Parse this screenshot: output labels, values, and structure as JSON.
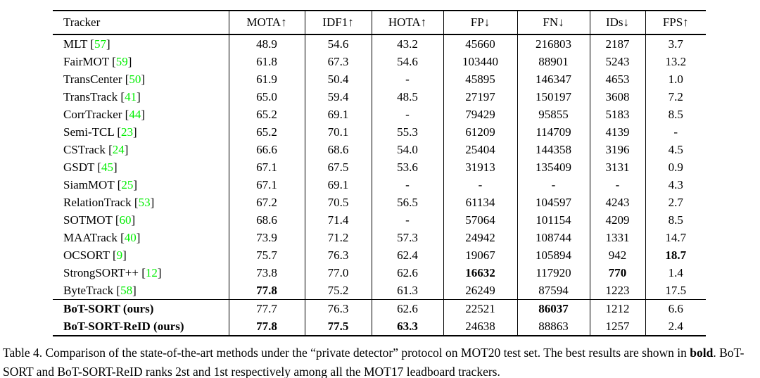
{
  "accent_colors": {
    "citation_green": "#00EE00",
    "text_black": "#000000",
    "background": "#FFFFFF"
  },
  "table": {
    "columns": [
      {
        "key": "tracker",
        "label": "Tracker",
        "arrow": ""
      },
      {
        "key": "mota",
        "label": "MOTA",
        "arrow": "↑"
      },
      {
        "key": "idf1",
        "label": "IDF1",
        "arrow": "↑"
      },
      {
        "key": "hota",
        "label": "HOTA",
        "arrow": "↑"
      },
      {
        "key": "fp",
        "label": "FP",
        "arrow": "↓"
      },
      {
        "key": "fn",
        "label": "FN",
        "arrow": "↓"
      },
      {
        "key": "ids",
        "label": "IDs",
        "arrow": "↓"
      },
      {
        "key": "fps",
        "label": "FPS",
        "arrow": "↑"
      }
    ],
    "rows": [
      {
        "name": "MLT",
        "ref": "57",
        "ours": false,
        "values": [
          "48.9",
          "54.6",
          "43.2",
          "45660",
          "216803",
          "2187",
          "3.7"
        ],
        "bold_cols": []
      },
      {
        "name": "FairMOT",
        "ref": "59",
        "ours": false,
        "values": [
          "61.8",
          "67.3",
          "54.6",
          "103440",
          "88901",
          "5243",
          "13.2"
        ],
        "bold_cols": []
      },
      {
        "name": "TransCenter",
        "ref": "50",
        "ours": false,
        "values": [
          "61.9",
          "50.4",
          "-",
          "45895",
          "146347",
          "4653",
          "1.0"
        ],
        "bold_cols": []
      },
      {
        "name": "TransTrack",
        "ref": "41",
        "ours": false,
        "values": [
          "65.0",
          "59.4",
          "48.5",
          "27197",
          "150197",
          "3608",
          "7.2"
        ],
        "bold_cols": []
      },
      {
        "name": "CorrTracker",
        "ref": "44",
        "ours": false,
        "values": [
          "65.2",
          "69.1",
          "-",
          "79429",
          "95855",
          "5183",
          "8.5"
        ],
        "bold_cols": []
      },
      {
        "name": "Semi-TCL",
        "ref": "23",
        "ours": false,
        "values": [
          "65.2",
          "70.1",
          "55.3",
          "61209",
          "114709",
          "4139",
          "-"
        ],
        "bold_cols": []
      },
      {
        "name": "CSTrack",
        "ref": "24",
        "ours": false,
        "values": [
          "66.6",
          "68.6",
          "54.0",
          "25404",
          "144358",
          "3196",
          "4.5"
        ],
        "bold_cols": []
      },
      {
        "name": "GSDT",
        "ref": "45",
        "ours": false,
        "values": [
          "67.1",
          "67.5",
          "53.6",
          "31913",
          "135409",
          "3131",
          "0.9"
        ],
        "bold_cols": []
      },
      {
        "name": "SiamMOT",
        "ref": "25",
        "ours": false,
        "values": [
          "67.1",
          "69.1",
          "-",
          "-",
          "-",
          "-",
          "4.3"
        ],
        "bold_cols": []
      },
      {
        "name": "RelationTrack",
        "ref": "53",
        "ours": false,
        "values": [
          "67.2",
          "70.5",
          "56.5",
          "61134",
          "104597",
          "4243",
          "2.7"
        ],
        "bold_cols": []
      },
      {
        "name": "SOTMOT",
        "ref": "60",
        "ours": false,
        "values": [
          "68.6",
          "71.4",
          "-",
          "57064",
          "101154",
          "4209",
          "8.5"
        ],
        "bold_cols": []
      },
      {
        "name": "MAATrack",
        "ref": "40",
        "ours": false,
        "values": [
          "73.9",
          "71.2",
          "57.3",
          "24942",
          "108744",
          "1331",
          "14.7"
        ],
        "bold_cols": []
      },
      {
        "name": "OCSORT",
        "ref": "9",
        "ours": false,
        "values": [
          "75.7",
          "76.3",
          "62.4",
          "19067",
          "105894",
          "942",
          "18.7"
        ],
        "bold_cols": [
          6
        ]
      },
      {
        "name": "StrongSORT++",
        "ref": "12",
        "ours": false,
        "values": [
          "73.8",
          "77.0",
          "62.6",
          "16632",
          "117920",
          "770",
          "1.4"
        ],
        "bold_cols": [
          3,
          5
        ]
      },
      {
        "name": "ByteTrack",
        "ref": "58",
        "ours": false,
        "values": [
          "77.8",
          "75.2",
          "61.3",
          "26249",
          "87594",
          "1223",
          "17.5"
        ],
        "bold_cols": [
          0
        ]
      },
      {
        "name": "BoT-SORT (ours)",
        "ref": "",
        "ours": true,
        "values": [
          "77.7",
          "76.3",
          "62.6",
          "22521",
          "86037",
          "1212",
          "6.6"
        ],
        "bold_cols": [
          4
        ]
      },
      {
        "name": "BoT-SORT-ReID (ours)",
        "ref": "",
        "ours": true,
        "values": [
          "77.8",
          "77.5",
          "63.3",
          "24638",
          "88863",
          "1257",
          "2.4"
        ],
        "bold_cols": [
          0,
          1,
          2
        ]
      }
    ]
  },
  "caption": {
    "segments": [
      {
        "text": "Table 4. Comparison of the state-of-the-art methods under the “private detector” protocol on MOT20 test set. The best results are shown in ",
        "bold": false
      },
      {
        "text": "bold",
        "bold": true
      },
      {
        "text": ". BoT-SORT and BoT-SORT-ReID ranks 2st and 1st respectively among all the MOT17 leadboard trackers.",
        "bold": false
      }
    ]
  }
}
